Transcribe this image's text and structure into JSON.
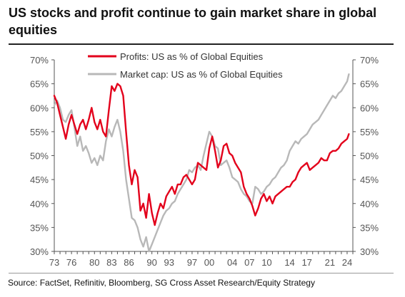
{
  "title": "US stocks and profit continue to gain market share in global equities",
  "source": "Source: FactSet, Refinitiv, Bloomberg, SG Cross Asset Research/Equity Strategy",
  "colors": {
    "profits": "#e3001b",
    "marketcap": "#b8b8b8",
    "axis": "#555555"
  },
  "chart_data": {
    "type": "line",
    "title": "",
    "xlabel": "",
    "ylabel": "",
    "xlim": [
      1973,
      2025
    ],
    "ylim": [
      30,
      70
    ],
    "y_ticks": [
      30,
      35,
      40,
      45,
      50,
      55,
      60,
      65,
      70
    ],
    "y_tick_labels": [
      "30%",
      "35%",
      "40%",
      "45%",
      "50%",
      "55%",
      "60%",
      "65%",
      "70%"
    ],
    "x_ticks": [
      1973,
      1976,
      1980,
      1983,
      1986,
      1990,
      1993,
      1997,
      2000,
      2004,
      2007,
      2010,
      2014,
      2017,
      2021,
      2024
    ],
    "x_tick_labels": [
      "73",
      "76",
      "80",
      "83",
      "86",
      "90",
      "93",
      "97",
      "00",
      "04",
      "07",
      "10",
      "14",
      "17",
      "21",
      "24"
    ],
    "grid": false,
    "legend_position": "top-left",
    "series": [
      {
        "name": "Profits: US as % of Global Equities",
        "color": "#e3001b",
        "x": [
          1973.0,
          1973.5,
          1974.0,
          1974.5,
          1975.0,
          1975.5,
          1976.0,
          1976.5,
          1977.0,
          1977.5,
          1978.0,
          1978.5,
          1979.0,
          1979.5,
          1980.0,
          1980.5,
          1981.0,
          1981.5,
          1982.0,
          1982.5,
          1983.0,
          1983.5,
          1984.0,
          1984.5,
          1985.0,
          1985.5,
          1986.0,
          1986.5,
          1987.0,
          1987.5,
          1988.0,
          1988.5,
          1989.0,
          1989.5,
          1990.0,
          1990.5,
          1991.0,
          1991.5,
          1992.0,
          1992.5,
          1993.0,
          1993.5,
          1994.0,
          1994.5,
          1995.0,
          1995.5,
          1996.0,
          1996.5,
          1997.0,
          1997.5,
          1998.0,
          1998.5,
          1999.0,
          1999.5,
          2000.0,
          2000.5,
          2001.0,
          2001.5,
          2002.0,
          2002.5,
          2003.0,
          2003.5,
          2004.0,
          2004.5,
          2005.0,
          2005.5,
          2006.0,
          2006.5,
          2007.0,
          2007.5,
          2008.0,
          2008.5,
          2009.0,
          2009.5,
          2010.0,
          2010.5,
          2011.0,
          2011.5,
          2012.0,
          2012.5,
          2013.0,
          2013.5,
          2014.0,
          2014.5,
          2015.0,
          2015.5,
          2016.0,
          2016.5,
          2017.0,
          2017.5,
          2018.0,
          2018.5,
          2019.0,
          2019.5,
          2020.0,
          2020.5,
          2021.0,
          2021.5,
          2022.0,
          2022.5,
          2023.0,
          2023.5,
          2024.0,
          2024.3
        ],
        "values": [
          62.5,
          61.0,
          58.5,
          56.0,
          53.5,
          56.5,
          58.5,
          56.5,
          54.5,
          56.5,
          57.5,
          55.5,
          57.5,
          60.0,
          57.0,
          55.5,
          57.5,
          55.0,
          54.0,
          59.5,
          64.5,
          63.5,
          65.0,
          64.5,
          62.5,
          55.0,
          48.0,
          44.0,
          47.0,
          45.5,
          38.5,
          40.0,
          37.0,
          42.0,
          38.0,
          35.5,
          38.0,
          40.0,
          39.0,
          41.5,
          42.5,
          43.5,
          42.0,
          44.0,
          44.0,
          45.5,
          46.0,
          45.0,
          44.0,
          45.0,
          48.5,
          48.0,
          47.5,
          47.0,
          51.5,
          54.0,
          51.0,
          47.5,
          49.0,
          52.0,
          52.5,
          50.5,
          50.0,
          48.5,
          47.5,
          46.5,
          43.5,
          42.0,
          41.0,
          39.5,
          37.5,
          39.0,
          41.0,
          42.0,
          40.5,
          41.5,
          40.0,
          41.5,
          42.0,
          42.5,
          43.0,
          43.5,
          43.5,
          44.5,
          45.0,
          46.5,
          47.5,
          48.0,
          48.5,
          47.0,
          47.5,
          48.0,
          48.5,
          49.5,
          49.0,
          49.0,
          50.5,
          51.0,
          51.0,
          51.5,
          52.5,
          53.0,
          53.5,
          54.5
        ]
      },
      {
        "name": "Market cap: US as % of Global Equities",
        "color": "#b8b8b8",
        "x": [
          1973.0,
          1973.5,
          1974.0,
          1974.5,
          1975.0,
          1975.5,
          1976.0,
          1976.5,
          1977.0,
          1977.5,
          1978.0,
          1978.5,
          1979.0,
          1979.5,
          1980.0,
          1980.5,
          1981.0,
          1981.5,
          1982.0,
          1982.5,
          1983.0,
          1983.5,
          1984.0,
          1984.5,
          1985.0,
          1985.5,
          1986.0,
          1986.5,
          1987.0,
          1987.5,
          1988.0,
          1988.5,
          1989.0,
          1989.5,
          1990.0,
          1990.5,
          1991.0,
          1991.5,
          1992.0,
          1992.5,
          1993.0,
          1993.5,
          1994.0,
          1994.5,
          1995.0,
          1995.5,
          1996.0,
          1996.5,
          1997.0,
          1997.5,
          1998.0,
          1998.5,
          1999.0,
          1999.5,
          2000.0,
          2000.5,
          2001.0,
          2001.5,
          2002.0,
          2002.5,
          2003.0,
          2003.5,
          2004.0,
          2004.5,
          2005.0,
          2005.5,
          2006.0,
          2006.5,
          2007.0,
          2007.5,
          2008.0,
          2008.5,
          2009.0,
          2009.5,
          2010.0,
          2010.5,
          2011.0,
          2011.5,
          2012.0,
          2012.5,
          2013.0,
          2013.5,
          2014.0,
          2014.5,
          2015.0,
          2015.5,
          2016.0,
          2016.5,
          2017.0,
          2017.5,
          2018.0,
          2018.5,
          2019.0,
          2019.5,
          2020.0,
          2020.5,
          2021.0,
          2021.5,
          2022.0,
          2022.5,
          2023.0,
          2023.5,
          2024.0,
          2024.3
        ],
        "values": [
          60.5,
          61.5,
          60.0,
          57.5,
          57.0,
          58.5,
          59.5,
          56.0,
          52.0,
          54.0,
          51.0,
          52.0,
          50.5,
          48.5,
          49.5,
          48.0,
          50.0,
          49.0,
          53.0,
          55.5,
          54.0,
          56.0,
          57.5,
          55.0,
          51.0,
          45.0,
          41.0,
          37.0,
          36.5,
          35.0,
          32.5,
          31.0,
          33.0,
          30.0,
          31.5,
          33.0,
          34.5,
          36.0,
          37.5,
          38.5,
          39.0,
          40.0,
          40.5,
          42.0,
          43.0,
          44.0,
          45.0,
          47.0,
          46.5,
          47.5,
          48.0,
          47.0,
          50.0,
          52.5,
          55.0,
          54.0,
          52.0,
          51.5,
          48.0,
          48.5,
          49.0,
          47.5,
          45.5,
          45.0,
          44.5,
          43.0,
          42.0,
          41.5,
          40.5,
          40.0,
          43.5,
          43.0,
          42.0,
          42.5,
          43.5,
          44.0,
          45.0,
          45.5,
          46.5,
          47.5,
          48.0,
          49.0,
          51.0,
          52.0,
          53.0,
          52.5,
          53.5,
          54.0,
          54.5,
          55.5,
          56.5,
          57.0,
          57.5,
          58.5,
          59.5,
          60.5,
          61.5,
          62.5,
          62.0,
          63.0,
          63.5,
          64.5,
          65.5,
          67.0
        ]
      }
    ]
  }
}
